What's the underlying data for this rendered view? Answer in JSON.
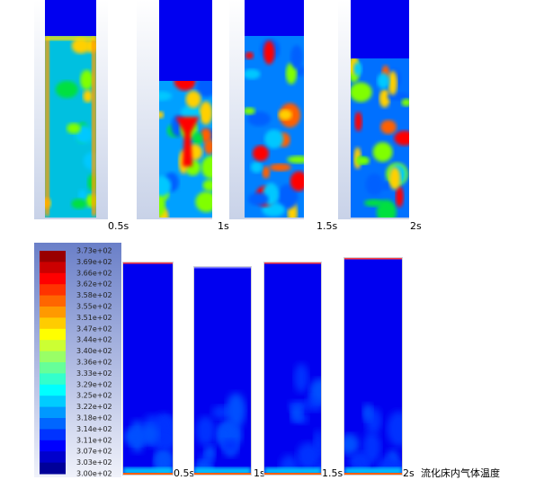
{
  "top_row": {
    "labels": [
      "0.5s",
      "1s",
      "1.5s",
      "2s"
    ]
  },
  "bottom_row": {
    "labels": [
      "0.5s",
      "1s",
      "1.5s",
      "2s"
    ],
    "caption": "流化床内气体温度"
  },
  "colorbar": {
    "labels": [
      "3.73e+02",
      "3.69e+02",
      "3.66e+02",
      "3.62e+02",
      "3.58e+02",
      "3.55e+02",
      "3.51e+02",
      "3.47e+02",
      "3.44e+02",
      "3.40e+02",
      "3.36e+02",
      "3.33e+02",
      "3.29e+02",
      "3.25e+02",
      "3.22e+02",
      "3.18e+02",
      "3.14e+02",
      "3.11e+02",
      "3.07e+02",
      "3.03e+02",
      "3.00e+02"
    ]
  }
}
